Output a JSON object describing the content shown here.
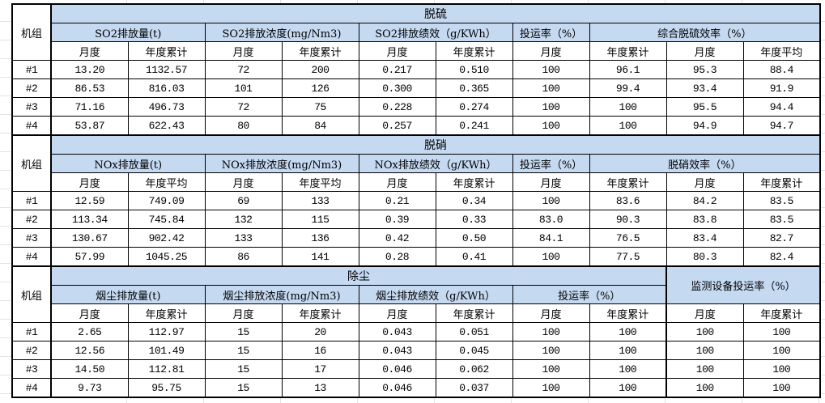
{
  "colors": {
    "header_fill": "#C5D9F1",
    "table_border": "#000000",
    "gridline": "#E3E3E3"
  },
  "sheet": {
    "unit_header": "机组",
    "sections": [
      {
        "title": "脱硫",
        "groups": [
          {
            "label": "SO2排放量(t)",
            "subcols": [
              "月度",
              "年度累计"
            ]
          },
          {
            "label": "SO2排放浓度(mg/Nm3)",
            "subcols": [
              "月度",
              "年度累计"
            ]
          },
          {
            "label": "SO2排放绩效（g/KWh）",
            "subcols": [
              "月度",
              "年度累计"
            ]
          },
          {
            "label": "投运率（%）",
            "subcols": [
              "月度"
            ]
          },
          {
            "label": "综合脱硫效率（%）",
            "subcols": [
              "年度累计",
              "月度",
              "年度平均"
            ]
          }
        ],
        "rows": [
          {
            "unit": "#1",
            "values": [
              "13.20",
              "1132.57",
              "72",
              "200",
              "0.217",
              "0.510",
              "100",
              "96.1",
              "95.3",
              "88.4"
            ]
          },
          {
            "unit": "#2",
            "values": [
              "86.53",
              "816.03",
              "101",
              "126",
              "0.300",
              "0.365",
              "100",
              "99.4",
              "93.4",
              "91.9"
            ]
          },
          {
            "unit": "#3",
            "values": [
              "71.16",
              "496.73",
              "72",
              "75",
              "0.228",
              "0.274",
              "100",
              "100",
              "95.5",
              "94.4"
            ]
          },
          {
            "unit": "#4",
            "values": [
              "53.87",
              "622.43",
              "80",
              "84",
              "0.257",
              "0.241",
              "100",
              "100",
              "94.9",
              "94.7"
            ]
          }
        ]
      },
      {
        "title": "脱硝",
        "groups": [
          {
            "label": "NOx排放量(t)",
            "subcols": [
              "月度",
              "年度平均"
            ]
          },
          {
            "label": "NOx排放浓度(mg/Nm3)",
            "subcols": [
              "月度",
              "年度平均"
            ]
          },
          {
            "label": "NOx排放绩效（g/KWh）",
            "subcols": [
              "月度",
              "年度累计"
            ]
          },
          {
            "label": "投运率（%）",
            "subcols": [
              "月度"
            ]
          },
          {
            "label": "脱硝效率（%）",
            "subcols": [
              "年度累计",
              "月度",
              "年度累计"
            ]
          }
        ],
        "rows": [
          {
            "unit": "#1",
            "values": [
              "12.59",
              "749.09",
              "69",
              "133",
              "0.21",
              "0.34",
              "100",
              "83.6",
              "84.2",
              "83.5"
            ]
          },
          {
            "unit": "#2",
            "values": [
              "113.34",
              "745.84",
              "132",
              "115",
              "0.39",
              "0.33",
              "83.0",
              "90.3",
              "83.8",
              "83.5"
            ]
          },
          {
            "unit": "#3",
            "values": [
              "130.67",
              "902.42",
              "133",
              "136",
              "0.42",
              "0.50",
              "84.1",
              "76.5",
              "83.4",
              "82.7"
            ]
          },
          {
            "unit": "#4",
            "values": [
              "57.99",
              "1045.25",
              "86",
              "141",
              "0.28",
              "0.41",
              "100",
              "77.5",
              "80.3",
              "82.4"
            ]
          }
        ]
      },
      {
        "title": "除尘",
        "groups": [
          {
            "label": "烟尘排放量(t)",
            "subcols": [
              "月度",
              "年度累计"
            ]
          },
          {
            "label": "烟尘排放浓度(mg/Nm3)",
            "subcols": [
              "月度",
              "年度累计"
            ]
          },
          {
            "label": "烟尘排放绩效（g/KWh）",
            "subcols": [
              "月度",
              "年度累计"
            ]
          },
          {
            "label": "投运率（%）",
            "subcols": [
              "月度",
              "年度累计"
            ]
          }
        ],
        "side_group": {
          "label": "监测设备投运率（%）",
          "subcols": [
            "月度",
            "年度累计"
          ]
        },
        "rows": [
          {
            "unit": "#1",
            "values": [
              "2.65",
              "112.97",
              "15",
              "20",
              "0.043",
              "0.051",
              "100",
              "100",
              "100",
              "100"
            ]
          },
          {
            "unit": "#2",
            "values": [
              "12.56",
              "101.49",
              "15",
              "16",
              "0.043",
              "0.045",
              "100",
              "100",
              "100",
              "100"
            ]
          },
          {
            "unit": "#3",
            "values": [
              "14.50",
              "112.81",
              "15",
              "17",
              "0.046",
              "0.062",
              "100",
              "100",
              "100",
              "100"
            ]
          },
          {
            "unit": "#4",
            "values": [
              "9.73",
              "95.75",
              "15",
              "13",
              "0.046",
              "0.037",
              "100",
              "100",
              "100",
              "100"
            ]
          }
        ]
      }
    ]
  }
}
